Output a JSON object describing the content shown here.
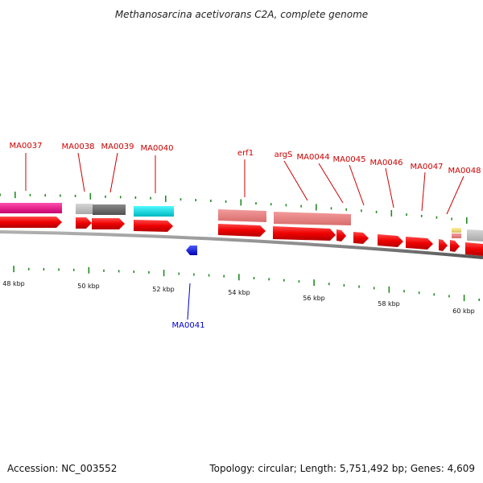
{
  "title": "Methanosarcina acetivorans C2A, complete genome",
  "footer": {
    "accession": "Accession: NC_003552",
    "summary": "Topology: circular; Length: 5,751,492 bp; Genes: 4,609"
  },
  "colors": {
    "forward_gene": "#ff0000",
    "reverse_gene": "#0000ff",
    "forward_label": "#cc0000",
    "reverse_label": "#0000cc",
    "tick": "#228b22",
    "backbone": "#888888"
  },
  "tick_labels": [
    "48 kbp",
    "50 kbp",
    "52 kbp",
    "54 kbp",
    "56 kbp",
    "58 kbp",
    "60 kbp"
  ],
  "gene_labels": {
    "forward": [
      "MA0037",
      "MA0038",
      "MA0039",
      "MA0040",
      "erf1",
      "argS",
      "MA0044",
      "MA0045",
      "MA0046",
      "MA0047",
      "MA0048"
    ],
    "reverse": [
      "MA0041"
    ]
  }
}
